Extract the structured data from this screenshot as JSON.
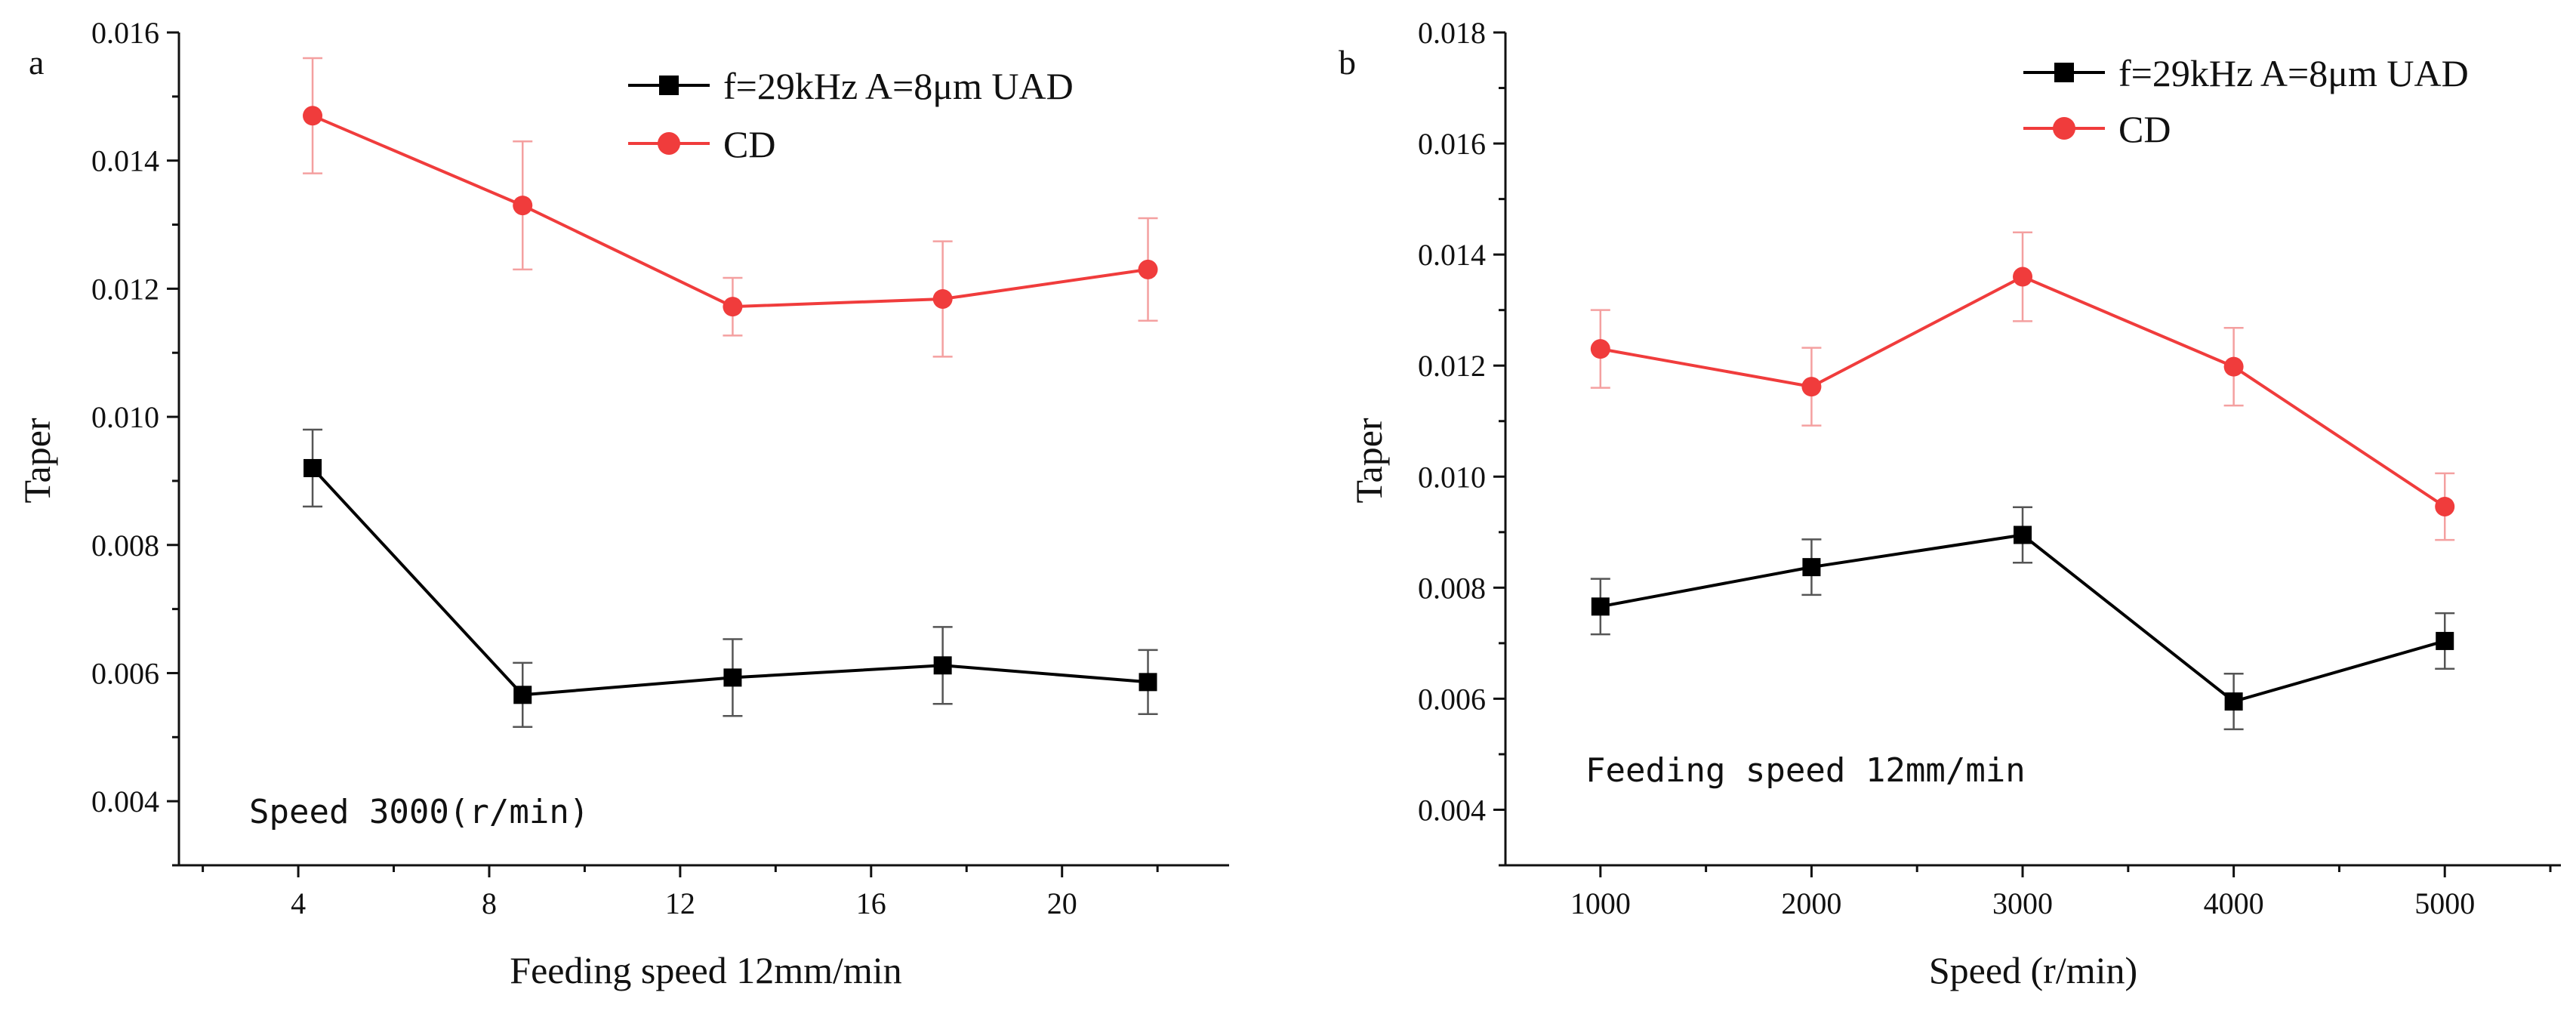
{
  "colors": {
    "uad": "#000000",
    "cd": "#f03c3c",
    "cd_errorbar": "#f4a0a0",
    "uad_errorbar": "#555555",
    "axis": "#111111"
  },
  "chart_data": [
    {
      "panel": "a",
      "type": "line",
      "title": "",
      "xlabel": "Feeding speed 12mm/min",
      "ylabel": "Taper",
      "xlim": [
        1.5,
        23.5
      ],
      "ylim": [
        0.003,
        0.016
      ],
      "xticks": [
        4,
        8,
        12,
        16,
        20
      ],
      "xtick_labels": [
        "4",
        "8",
        "12",
        "16",
        "20"
      ],
      "yticks": [
        0.004,
        0.006,
        0.008,
        0.01,
        0.012,
        0.014,
        0.016
      ],
      "ytick_labels": [
        "0.004",
        "0.006",
        "0.008",
        "0.010",
        "0.012",
        "0.014",
        "0.016"
      ],
      "annotation": "Speed 3000(r/min)",
      "legend": "top-right",
      "series": [
        {
          "name": "f=29kHz A=8μm UAD",
          "marker": "square",
          "color": "#000000",
          "x": [
            4.3,
            8.7,
            13.1,
            17.5,
            21.8
          ],
          "y": [
            0.0092,
            0.00566,
            0.00593,
            0.00612,
            0.00586
          ],
          "err": [
            0.0006,
            0.0005,
            0.0006,
            0.0006,
            0.0005
          ]
        },
        {
          "name": "CD",
          "marker": "circle",
          "color": "#f03c3c",
          "x": [
            4.3,
            8.7,
            13.1,
            17.5,
            21.8
          ],
          "y": [
            0.0147,
            0.0133,
            0.01172,
            0.01184,
            0.0123
          ],
          "err": [
            0.0009,
            0.001,
            0.00045,
            0.0009,
            0.0008
          ]
        }
      ]
    },
    {
      "panel": "b",
      "type": "line",
      "title": "",
      "xlabel": "Speed (r/min)",
      "ylabel": "Taper",
      "xlim": [
        550,
        5550
      ],
      "ylim": [
        0.003,
        0.018
      ],
      "xticks": [
        1000,
        2000,
        3000,
        4000,
        5000
      ],
      "xtick_labels": [
        "1000",
        "2000",
        "3000",
        "4000",
        "5000"
      ],
      "yticks": [
        0.004,
        0.006,
        0.008,
        0.01,
        0.012,
        0.014,
        0.016,
        0.018
      ],
      "ytick_labels": [
        "0.004",
        "0.006",
        "0.008",
        "0.010",
        "0.012",
        "0.014",
        "0.016",
        "0.018"
      ],
      "annotation": "Feeding speed 12mm/min",
      "legend": "top-right",
      "series": [
        {
          "name": "f=29kHz A=8μm UAD",
          "marker": "square",
          "color": "#000000",
          "x": [
            1000,
            2000,
            3000,
            4000,
            5000
          ],
          "y": [
            0.00766,
            0.00837,
            0.00895,
            0.00595,
            0.00704
          ],
          "err": [
            0.0005,
            0.0005,
            0.0005,
            0.0005,
            0.0005
          ]
        },
        {
          "name": "CD",
          "marker": "circle",
          "color": "#f03c3c",
          "x": [
            1000,
            2000,
            3000,
            4000,
            5000
          ],
          "y": [
            0.0123,
            0.01162,
            0.0136,
            0.01198,
            0.00946
          ],
          "err": [
            0.0007,
            0.0007,
            0.0008,
            0.0007,
            0.0006
          ]
        }
      ]
    }
  ]
}
